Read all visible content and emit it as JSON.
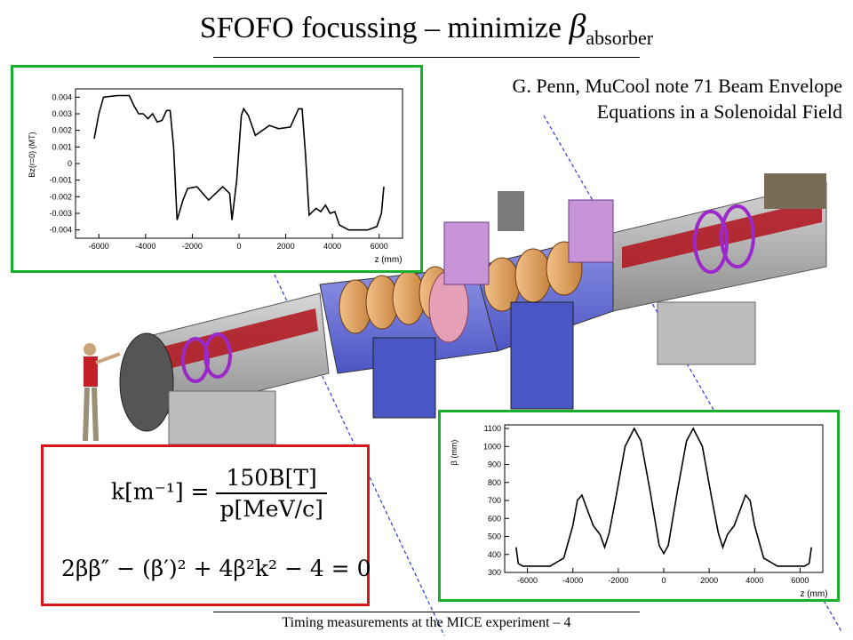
{
  "title": {
    "main": "SFOFO  focussing – minimize ",
    "beta": "β",
    "sub": "absorber"
  },
  "citation": {
    "line1": "G. Penn, MuCool note 71 Beam Envelope",
    "line2": "Equations in a Solenoidal Field"
  },
  "footer": "Timing measurements at the MICE experiment – 4",
  "equation": {
    "k_lhs": "k[m⁻¹] =",
    "k_num": "150B[T]",
    "k_den": "p[MeV/c]",
    "envelope": "2ββ″ − (β′)² + 4β²k² − 4 = 0"
  },
  "colors": {
    "panel_border_green": "#17b02c",
    "panel_border_red": "#d9141b",
    "guide_line": "#2a3bd8"
  },
  "chart_data": [
    {
      "type": "line",
      "title": "",
      "xlabel": "z (mm)",
      "ylabel": "Bz(r=0) (MT)",
      "xlim": [
        -7000,
        7000
      ],
      "ylim": [
        -0.0045,
        0.0045
      ],
      "x_ticks": [
        "-6000",
        "-4000",
        "-2000",
        "0",
        "2000",
        "4000",
        "6000"
      ],
      "y_ticks": [
        "0.004",
        "0.003",
        "0.002",
        "0.001",
        "0",
        "-0.001",
        "-0.002",
        "-0.003",
        "-0.004"
      ],
      "series": [
        {
          "values": [
            [
              -6200,
              0.0015
            ],
            [
              -6000,
              0.003
            ],
            [
              -5800,
              0.004
            ],
            [
              -5200,
              0.0041
            ],
            [
              -4700,
              0.0041
            ],
            [
              -4500,
              0.0035
            ],
            [
              -4300,
              0.003
            ],
            [
              -4100,
              0.003
            ],
            [
              -3900,
              0.0027
            ],
            [
              -3700,
              0.003
            ],
            [
              -3500,
              0.0025
            ],
            [
              -3300,
              0.0026
            ],
            [
              -3100,
              0.0032
            ],
            [
              -2950,
              0.0032
            ],
            [
              -2800,
              0.001
            ],
            [
              -2650,
              -0.0034
            ],
            [
              -2400,
              -0.0022
            ],
            [
              -2200,
              -0.0015
            ],
            [
              -1800,
              -0.0014
            ],
            [
              -1300,
              -0.0022
            ],
            [
              -700,
              -0.0014
            ],
            [
              -400,
              -0.0018
            ],
            [
              -300,
              -0.0034
            ],
            [
              -100,
              -0.001
            ],
            [
              100,
              0.0029
            ],
            [
              200,
              0.0033
            ],
            [
              400,
              0.0029
            ],
            [
              700,
              0.0017
            ],
            [
              1300,
              0.0023
            ],
            [
              1700,
              0.0021
            ],
            [
              2200,
              0.0022
            ],
            [
              2550,
              0.0033
            ],
            [
              2700,
              0.0033
            ],
            [
              2850,
              0.0005
            ],
            [
              3000,
              -0.0031
            ],
            [
              3300,
              -0.0027
            ],
            [
              3500,
              -0.0029
            ],
            [
              3700,
              -0.0025
            ],
            [
              3900,
              -0.003
            ],
            [
              4100,
              -0.0029
            ],
            [
              4300,
              -0.0037
            ],
            [
              4700,
              -0.004
            ],
            [
              5500,
              -0.004
            ],
            [
              5900,
              -0.0038
            ],
            [
              6100,
              -0.003
            ],
            [
              6200,
              -0.0014
            ]
          ]
        }
      ]
    },
    {
      "type": "line",
      "title": "",
      "xlabel": "z (mm)",
      "ylabel": "β (mm)",
      "xlim": [
        -7000,
        7000
      ],
      "ylim": [
        300,
        1120
      ],
      "x_ticks": [
        "-6000",
        "-4000",
        "-2000",
        "0",
        "2000",
        "4000",
        "6000"
      ],
      "y_ticks": [
        "1100",
        "1000",
        "900",
        "800",
        "700",
        "600",
        "500",
        "400",
        "300"
      ],
      "series": [
        {
          "values": [
            [
              -6500,
              440
            ],
            [
              -6400,
              350
            ],
            [
              -6200,
              335
            ],
            [
              -5000,
              335
            ],
            [
              -4400,
              380
            ],
            [
              -4000,
              560
            ],
            [
              -3800,
              700
            ],
            [
              -3600,
              730
            ],
            [
              -3400,
              660
            ],
            [
              -3100,
              560
            ],
            [
              -2800,
              510
            ],
            [
              -2600,
              440
            ],
            [
              -2400,
              520
            ],
            [
              -2100,
              720
            ],
            [
              -1700,
              1000
            ],
            [
              -1300,
              1100
            ],
            [
              -1000,
              1030
            ],
            [
              -600,
              750
            ],
            [
              -200,
              450
            ],
            [
              0,
              405
            ],
            [
              200,
              450
            ],
            [
              600,
              750
            ],
            [
              1000,
              1030
            ],
            [
              1300,
              1100
            ],
            [
              1700,
              1000
            ],
            [
              2100,
              720
            ],
            [
              2400,
              520
            ],
            [
              2600,
              440
            ],
            [
              2800,
              510
            ],
            [
              3100,
              560
            ],
            [
              3400,
              660
            ],
            [
              3600,
              730
            ],
            [
              3800,
              700
            ],
            [
              4000,
              560
            ],
            [
              4400,
              380
            ],
            [
              5000,
              335
            ],
            [
              6200,
              335
            ],
            [
              6400,
              350
            ],
            [
              6500,
              440
            ]
          ]
        }
      ]
    }
  ]
}
